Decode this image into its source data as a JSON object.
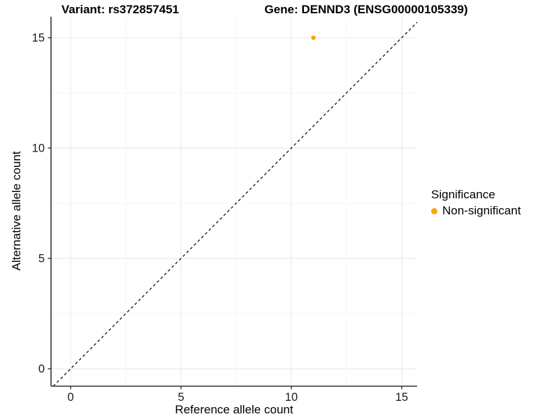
{
  "titles": {
    "variant": "Variant: rs372857451",
    "gene": "Gene: DENND3 (ENSG00000105339)"
  },
  "chart_data": {
    "type": "scatter",
    "title_left": "Variant: rs372857451",
    "title_right": "Gene: DENND3 (ENSG00000105339)",
    "xlabel": "Reference allele count",
    "ylabel": "Alternative allele count",
    "xlim": [
      -0.89,
      15.7
    ],
    "ylim": [
      -0.79,
      15.95
    ],
    "xticks": [
      0,
      5,
      10,
      15
    ],
    "yticks": [
      0,
      5,
      10,
      15
    ],
    "grid": "major+minor",
    "points": [
      {
        "x": 11,
        "y": 15,
        "series": "Non-significant"
      }
    ],
    "reference_line": {
      "slope": 1,
      "intercept": 0,
      "style": "dashed",
      "color": "#000000"
    },
    "legend": {
      "title": "Significance",
      "position": "right",
      "items": [
        {
          "label": "Non-significant",
          "color": "#FFA40D"
        }
      ]
    },
    "style_colors": {
      "axis_line": "#333333",
      "tick_text": "#1a1a1a",
      "grid_major": "#EBEBEB",
      "grid_minor": "#F5F5F5",
      "panel_background": "#FFFFFF"
    }
  }
}
